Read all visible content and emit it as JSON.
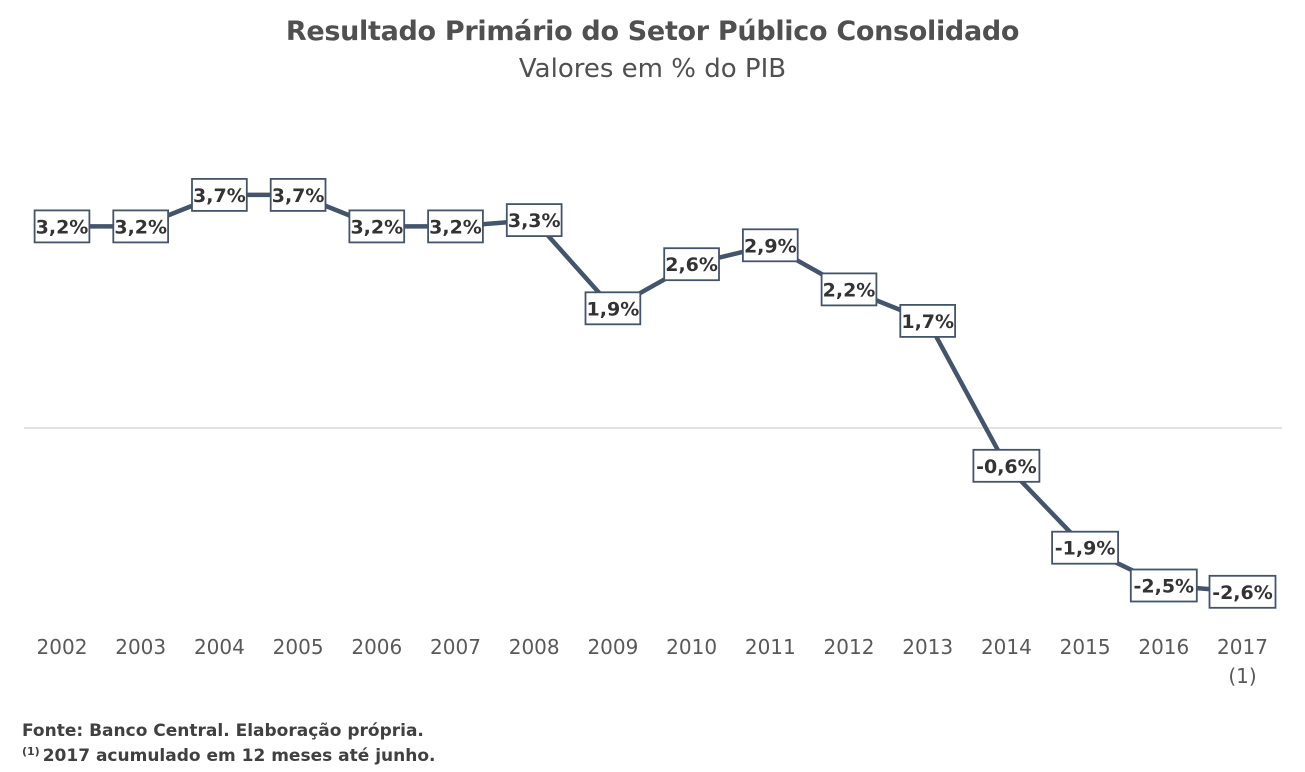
{
  "chart_data": {
    "type": "line",
    "title": "Resultado Primário do Setor Público Consolidado",
    "subtitle": "Valores em % do PIB",
    "categories": [
      "2002",
      "2003",
      "2004",
      "2005",
      "2006",
      "2007",
      "2008",
      "2009",
      "2010",
      "2011",
      "2012",
      "2013",
      "2014",
      "2015",
      "2016",
      "2017"
    ],
    "category_sublabels": [
      "",
      "",
      "",
      "",
      "",
      "",
      "",
      "",
      "",
      "",
      "",
      "",
      "",
      "",
      "",
      "(1)"
    ],
    "series": [
      {
        "values": [
          3.2,
          3.2,
          3.7,
          3.7,
          3.2,
          3.2,
          3.3,
          1.9,
          2.6,
          2.9,
          2.2,
          1.7,
          -0.6,
          -1.9,
          -2.5,
          -2.6
        ],
        "labels": [
          "3,2%",
          "3,2%",
          "3,7%",
          "3,7%",
          "3,2%",
          "3,2%",
          "3,3%",
          "1,9%",
          "2,6%",
          "2,9%",
          "2,2%",
          "1,7%",
          "-0,6%",
          "-1,9%",
          "-2,5%",
          "-2,6%"
        ]
      }
    ],
    "xlabel": "",
    "ylabel": "",
    "zero_line": true,
    "grid": false,
    "legend": "none",
    "colors": {
      "line": "#44546a",
      "label_border": "#44546a",
      "label_text": "#333333",
      "zero_line": "#d9d9d9",
      "axis_text": "#595959"
    }
  },
  "footnotes": {
    "source": "Fonte: Banco Central. Elaboração própria.",
    "note_marker": "(1)",
    "note_text": "2017 acumulado em 12 meses até junho."
  }
}
